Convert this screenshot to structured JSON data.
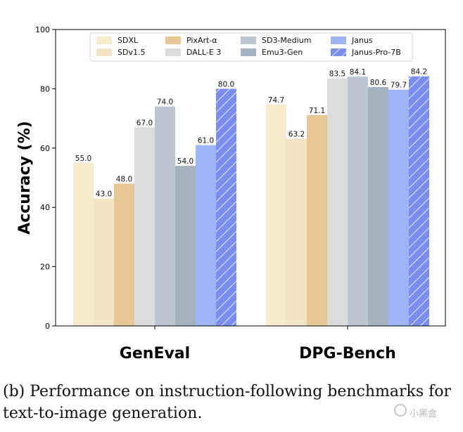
{
  "chart_data": {
    "type": "bar",
    "categories": [
      "GenEval",
      "DPG-Bench"
    ],
    "ylabel": "Accuracy (%)",
    "ylim": [
      0,
      100
    ],
    "yticks": [
      0,
      20,
      40,
      60,
      80,
      100
    ],
    "grid": false,
    "legend_position": "top",
    "series": [
      {
        "name": "SDXL",
        "values": [
          55.0,
          74.7
        ],
        "labels": [
          "55.0",
          "74.7"
        ],
        "color": "#f6ebcb",
        "hatch": false
      },
      {
        "name": "SDv1.5",
        "values": [
          43.0,
          63.2
        ],
        "labels": [
          "43.0",
          "63.2"
        ],
        "color": "#f2e4c4",
        "hatch": false
      },
      {
        "name": "PixArt-α",
        "values": [
          48.0,
          71.1
        ],
        "labels": [
          "48.0",
          "71.1"
        ],
        "color": "#e7c895",
        "hatch": false
      },
      {
        "name": "DALL-E 3",
        "values": [
          67.0,
          83.5
        ],
        "labels": [
          "67.0",
          "83.5"
        ],
        "color": "#dcdcdc",
        "hatch": false
      },
      {
        "name": "SD3-Medium",
        "values": [
          74.0,
          84.1
        ],
        "labels": [
          "74.0",
          "84.1"
        ],
        "color": "#bcc6d1",
        "hatch": false
      },
      {
        "name": "Emu3-Gen",
        "values": [
          54.0,
          80.6
        ],
        "labels": [
          "54.0",
          "80.6"
        ],
        "color": "#a5b3c0",
        "hatch": false
      },
      {
        "name": "Janus",
        "values": [
          61.0,
          79.7
        ],
        "labels": [
          "61.0",
          "79.7"
        ],
        "color": "#9db4f7",
        "hatch": false
      },
      {
        "name": "Janus-Pro-7B",
        "values": [
          80.0,
          84.2
        ],
        "labels": [
          "80.0",
          "84.2"
        ],
        "color": "#7b8ef0",
        "hatch": true
      }
    ]
  },
  "caption": {
    "line1": "(b)  Performance on instruction-following benchmarks for",
    "line2": "text-to-image generation."
  },
  "watermark": "小黑盒"
}
